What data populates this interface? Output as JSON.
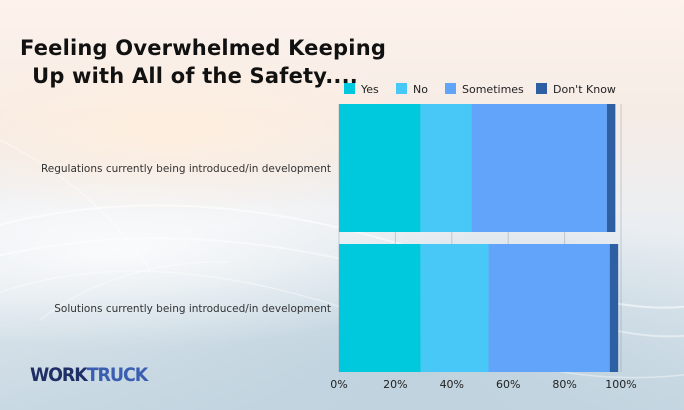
{
  "title_line1": "Feeling Overwhelmed Keeping",
  "title_line2": "Up with All of the Safety....",
  "logo": {
    "part1": "WORK",
    "part2": "TRUCK"
  },
  "chart_data": {
    "type": "bar",
    "orientation": "horizontal",
    "stacked": true,
    "title": "Feeling Overwhelmed Keeping Up with All of the Safety....",
    "categories": [
      "Regulations currently being introduced/in development",
      "Solutions currently being introduced/in development"
    ],
    "series": [
      {
        "name": "Yes",
        "color": "#00c9dd",
        "values": [
          29,
          29
        ]
      },
      {
        "name": "No",
        "color": "#48c8f7",
        "values": [
          18,
          24
        ]
      },
      {
        "name": "Sometimes",
        "color": "#62a4fa",
        "values": [
          48,
          43
        ]
      },
      {
        "name": "Don't Know",
        "color": "#2f5fa3",
        "values": [
          3,
          3
        ]
      }
    ],
    "xlim": [
      0,
      100
    ],
    "ticks": [
      "0%",
      "20%",
      "40%",
      "60%",
      "80%",
      "100%"
    ],
    "xlabel": "",
    "ylabel": "",
    "grid": true,
    "legend_position": "top"
  }
}
